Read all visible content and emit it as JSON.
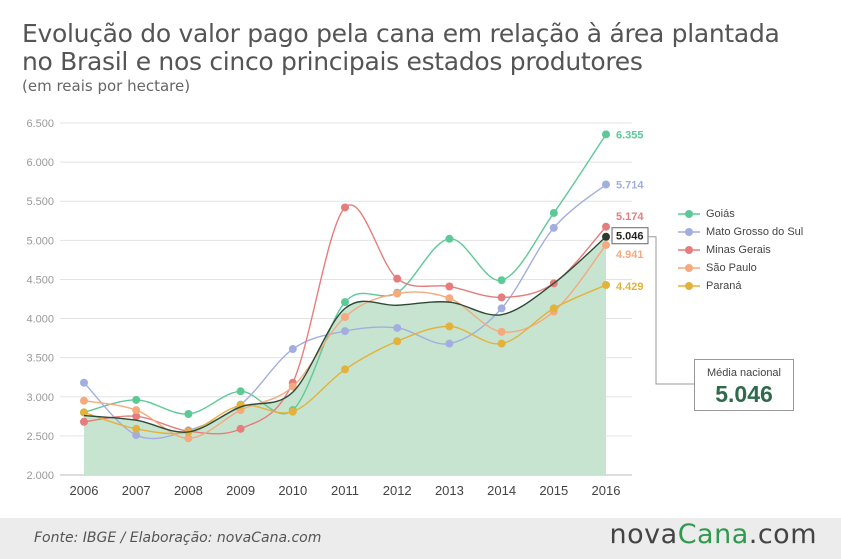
{
  "title_line1": "Evolução do valor pago pela cana em relação à área plantada",
  "title_line2": "no Brasil e nos cinco principais estados produtores",
  "subtitle": "(em reais por hectare)",
  "source": "Fonte:  IBGE / Elaboração: novaCana.com",
  "logo": {
    "part1": "nova",
    "part2": "Cana",
    "part3": ".com"
  },
  "average_box": {
    "label": "Média nacional",
    "value": "5.046"
  },
  "chart_data": {
    "type": "line",
    "x": [
      "2006",
      "2007",
      "2008",
      "2009",
      "2010",
      "2011",
      "2012",
      "2013",
      "2014",
      "2015",
      "2016"
    ],
    "ylim": [
      2000,
      6500
    ],
    "yticks": [
      "2.000",
      "2.500",
      "3.000",
      "3.500",
      "4.000",
      "4.500",
      "5.000",
      "5.500",
      "6.000",
      "6.500"
    ],
    "grid": true,
    "legend_position": "right",
    "series": [
      {
        "name": "Goiás",
        "color": "#5ec997",
        "values": [
          2800,
          2960,
          2780,
          3070,
          2830,
          4210,
          4330,
          5020,
          4490,
          5350,
          6355
        ],
        "end_label": "6.355"
      },
      {
        "name": "Mato Grosso do Sul",
        "color": "#a3aee0",
        "values": [
          3180,
          2510,
          2570,
          2900,
          3610,
          3840,
          3880,
          3680,
          4130,
          5160,
          5714
        ],
        "end_label": "5.714"
      },
      {
        "name": "Minas Gerais",
        "color": "#e57d7d",
        "values": [
          2680,
          2750,
          2560,
          2590,
          3180,
          5420,
          4510,
          4410,
          4270,
          4450,
          5174
        ],
        "end_label": "5.174"
      },
      {
        "name": "São Paulo",
        "color": "#f5a97e",
        "values": [
          2950,
          2830,
          2470,
          2830,
          3130,
          4020,
          4320,
          4260,
          3830,
          4090,
          4941
        ],
        "end_label": "4.941"
      },
      {
        "name": "Paraná",
        "color": "#e3b23c",
        "values": [
          2800,
          2590,
          2550,
          2890,
          2810,
          3350,
          3710,
          3900,
          3680,
          4130,
          4429
        ],
        "end_label": "4.429"
      }
    ],
    "national_average": {
      "name": "Média nacional",
      "color": "#2e4a36",
      "fill": "#c4e3cf",
      "values": [
        2760,
        2700,
        2550,
        2870,
        3060,
        4130,
        4170,
        4210,
        4050,
        4450,
        5046
      ],
      "end_label": "5.046"
    }
  }
}
